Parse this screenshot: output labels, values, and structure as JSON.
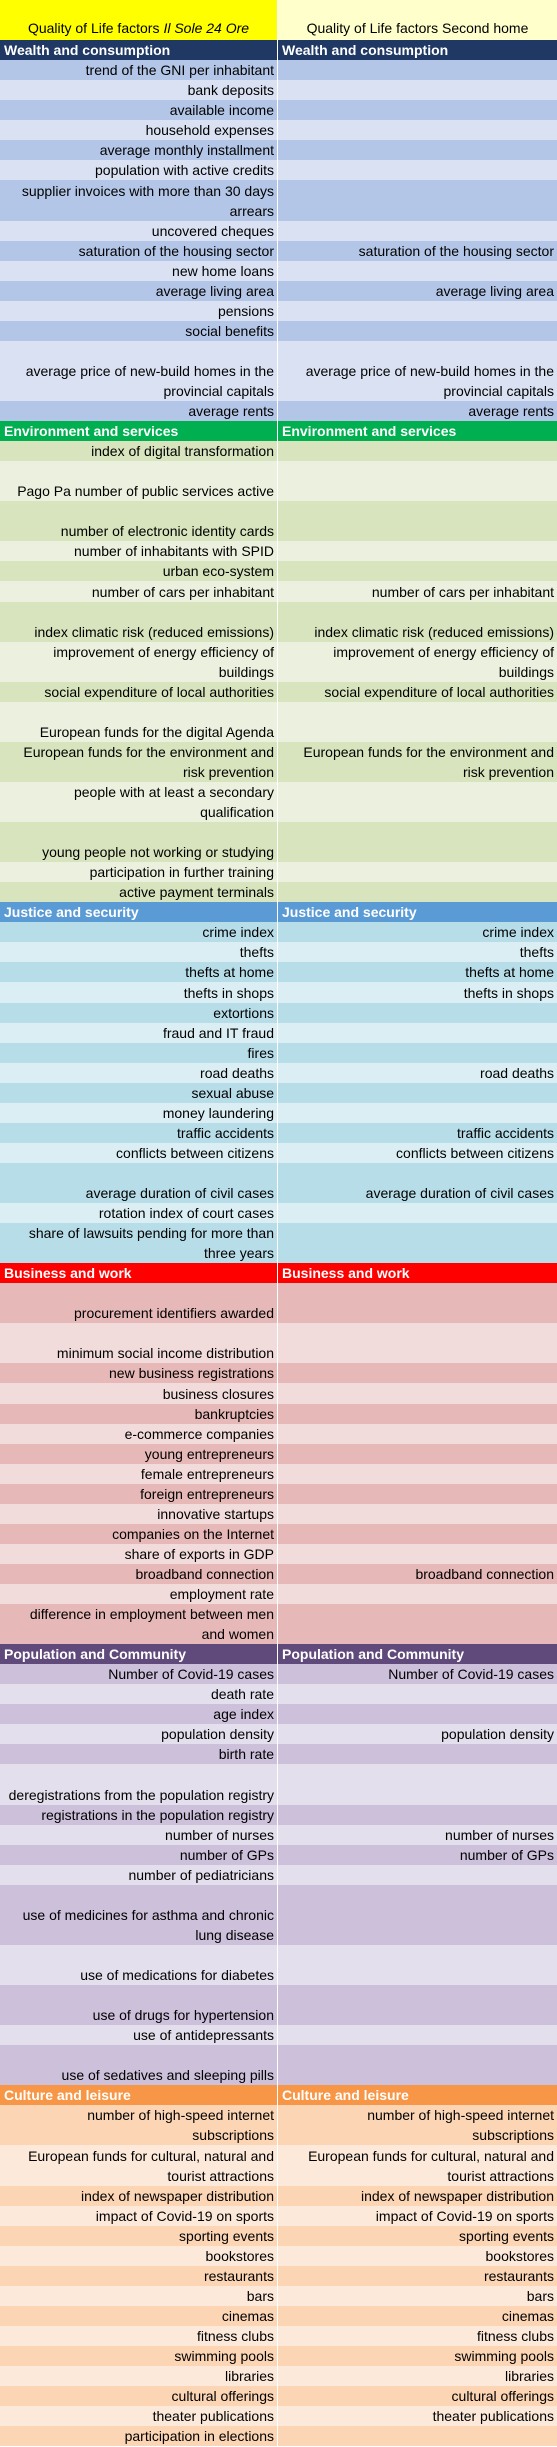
{
  "header": {
    "il_sole": {
      "prefix": "Quality of Life factors",
      "source": "Il Sole 24 Ore"
    },
    "second_home": "Quality of Life factors Second home"
  },
  "sections": [
    {
      "title": "Wealth and consumption",
      "rows": [
        {
          "il_sole": "trend of the GNI per inhabitant"
        },
        {
          "il_sole": "bank deposits"
        },
        {
          "il_sole": "available income"
        },
        {
          "il_sole": "household expenses"
        },
        {
          "il_sole": "average monthly installment"
        },
        {
          "il_sole": "population with active credits"
        },
        {
          "il_sole": "supplier invoices with more than 30 days arrears"
        },
        {
          "il_sole": "uncovered cheques"
        },
        {
          "il_sole": "saturation of the housing sector",
          "second_home": "saturation of the housing sector"
        },
        {
          "il_sole": "new home loans"
        },
        {
          "il_sole": "average living area",
          "second_home": "average living area"
        },
        {
          "il_sole": "pensions"
        },
        {
          "il_sole": "social benefits"
        },
        {
          "il_sole": "average price of new-build homes in the provincial capitals",
          "second_home": "average price of new-build homes in the provincial capitals"
        },
        {
          "il_sole": "average rents",
          "second_home": "average rents"
        }
      ]
    },
    {
      "title": "Environment and services",
      "rows": [
        {
          "il_sole": "index of digital transformation"
        },
        {
          "il_sole": "Pago Pa number of public services active"
        },
        {
          "il_sole": "number of electronic identity cards"
        },
        {
          "il_sole": "number of inhabitants with SPID"
        },
        {
          "il_sole": "urban eco-system"
        },
        {
          "il_sole": "number of cars per inhabitant",
          "second_home": "number of cars per inhabitant"
        },
        {
          "il_sole": "index climatic risk (reduced emissions)",
          "second_home": "index climatic risk (reduced emissions)"
        },
        {
          "il_sole": "improvement of energy efficiency of buildings",
          "second_home": "improvement of energy efficiency of buildings"
        },
        {
          "il_sole": "social expenditure of local authorities",
          "second_home": "social expenditure of local authorities"
        },
        {
          "il_sole": "European funds for the digital Agenda"
        },
        {
          "il_sole": "European funds for the environment and risk prevention",
          "second_home": "European funds for the environment and risk prevention"
        },
        {
          "il_sole": "people with at least a secondary qualification"
        },
        {
          "il_sole": "young people not working or studying"
        },
        {
          "il_sole": "participation in further training"
        },
        {
          "il_sole": "active payment terminals"
        }
      ]
    },
    {
      "title": "Justice and security",
      "rows": [
        {
          "il_sole": "crime index",
          "second_home": "crime index"
        },
        {
          "il_sole": "thefts",
          "second_home": "thefts"
        },
        {
          "il_sole": "thefts at home",
          "second_home": "thefts at home"
        },
        {
          "il_sole": "thefts in shops",
          "second_home": "thefts in shops"
        },
        {
          "il_sole": "extortions"
        },
        {
          "il_sole": "fraud and IT fraud"
        },
        {
          "il_sole": "fires"
        },
        {
          "il_sole": "road deaths",
          "second_home": "road deaths"
        },
        {
          "il_sole": "sexual abuse"
        },
        {
          "il_sole": "money laundering"
        },
        {
          "il_sole": "traffic accidents",
          "second_home": "traffic accidents"
        },
        {
          "il_sole": "conflicts between citizens",
          "second_home": "conflicts between citizens"
        },
        {
          "il_sole": "average duration of civil cases",
          "second_home": "average duration of civil cases"
        },
        {
          "il_sole": "rotation index of court cases"
        },
        {
          "il_sole": "share of lawsuits pending for more than three years"
        }
      ]
    },
    {
      "title": "Business and work",
      "rows": [
        {
          "il_sole": "procurement identifiers awarded"
        },
        {
          "il_sole": "minimum social income distribution"
        },
        {
          "il_sole": "new business registrations"
        },
        {
          "il_sole": "business closures"
        },
        {
          "il_sole": "bankruptcies"
        },
        {
          "il_sole": "e-commerce companies"
        },
        {
          "il_sole": "young entrepreneurs"
        },
        {
          "il_sole": "female entrepreneurs"
        },
        {
          "il_sole": "foreign entrepreneurs"
        },
        {
          "il_sole": "innovative startups"
        },
        {
          "il_sole": "companies on the Internet"
        },
        {
          "il_sole": "share of exports in GDP"
        },
        {
          "il_sole": "broadband connection",
          "second_home": "broadband connection"
        },
        {
          "il_sole": "employment rate"
        },
        {
          "il_sole": "difference in employment between men and women"
        }
      ]
    },
    {
      "title": "Population and Community",
      "rows": [
        {
          "il_sole": "Number of Covid-19 cases",
          "second_home": "Number of Covid-19 cases"
        },
        {
          "il_sole": "death rate"
        },
        {
          "il_sole": "age index"
        },
        {
          "il_sole": "population density",
          "second_home": "population density"
        },
        {
          "il_sole": "birth rate"
        },
        {
          "il_sole": "deregistrations from the population registry"
        },
        {
          "il_sole": "registrations in the population registry"
        },
        {
          "il_sole": "number of nurses",
          "second_home": "number of nurses"
        },
        {
          "il_sole": "number of GPs",
          "second_home": "number of GPs"
        },
        {
          "il_sole": "number of pediatricians"
        },
        {
          "il_sole": "use of medicines for asthma and chronic lung disease"
        },
        {
          "il_sole": "use of medications for diabetes"
        },
        {
          "il_sole": "use of drugs for hypertension"
        },
        {
          "il_sole": "use of antidepressants"
        },
        {
          "il_sole": "use of sedatives and sleeping pills"
        }
      ]
    },
    {
      "title": "Culture and leisure",
      "rows": [
        {
          "il_sole": "number of high-speed internet subscriptions",
          "second_home": "number of high-speed internet subscriptions"
        },
        {
          "il_sole": "European funds for cultural, natural and tourist attractions",
          "second_home": "European funds for cultural, natural and tourist attractions"
        },
        {
          "il_sole": "index of newspaper distribution",
          "second_home": "index of newspaper distribution"
        },
        {
          "il_sole": "impact of Covid-19 on sports",
          "second_home": "impact of Covid-19 on sports"
        },
        {
          "il_sole": "sporting events",
          "second_home": "sporting events"
        },
        {
          "il_sole": "bookstores",
          "second_home": "bookstores"
        },
        {
          "il_sole": "restaurants",
          "second_home": "restaurants"
        },
        {
          "il_sole": "bars",
          "second_home": "bars"
        },
        {
          "il_sole": "cinemas",
          "second_home": "cinemas"
        },
        {
          "il_sole": "fitness clubs",
          "second_home": "fitness clubs"
        },
        {
          "il_sole": "swimming pools",
          "second_home": "swimming pools"
        },
        {
          "il_sole": "libraries",
          "second_home": "libraries"
        },
        {
          "il_sole": "cultural offerings",
          "second_home": "cultural offerings"
        },
        {
          "il_sole": "theater publications",
          "second_home": "theater publications"
        },
        {
          "il_sole": "participation in elections"
        }
      ]
    }
  ]
}
